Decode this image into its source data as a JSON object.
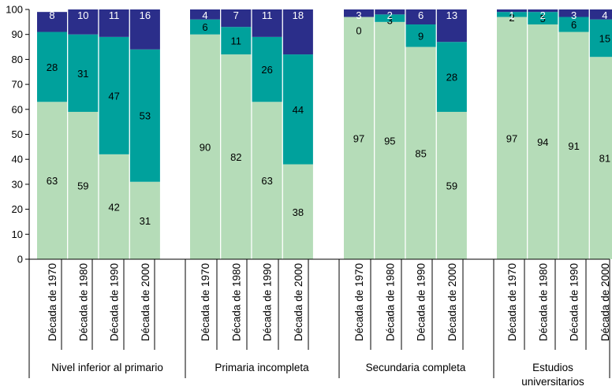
{
  "chart_data": {
    "type": "bar",
    "stacked": true,
    "ylim": [
      0,
      100
    ],
    "yticks": [
      0,
      10,
      20,
      30,
      40,
      50,
      60,
      70,
      80,
      90,
      100
    ],
    "grid": false,
    "colors": {
      "bottom": "#b5dcb8",
      "middle": "#00a19c",
      "top": "#2b2e8a"
    },
    "categories": [
      "Década de 1970",
      "Década de 1980",
      "Década de 1990",
      "Década de 2000"
    ],
    "groups": [
      {
        "label": "Nivel inferior al primario",
        "bars": [
          {
            "category": "Década de 1970",
            "values": [
              63,
              28,
              8
            ]
          },
          {
            "category": "Década de 1980",
            "values": [
              59,
              31,
              10
            ]
          },
          {
            "category": "Década de 1990",
            "values": [
              42,
              47,
              11
            ]
          },
          {
            "category": "Década de 2000",
            "values": [
              31,
              53,
              16
            ]
          }
        ]
      },
      {
        "label": "Primaria incompleta",
        "bars": [
          {
            "category": "Década de 1970",
            "values": [
              90,
              6,
              4
            ]
          },
          {
            "category": "Década de 1980",
            "values": [
              82,
              11,
              7
            ]
          },
          {
            "category": "Década de 1990",
            "values": [
              63,
              26,
              11
            ]
          },
          {
            "category": "Década de 2000",
            "values": [
              38,
              44,
              18
            ]
          }
        ]
      },
      {
        "label": "Secundaria completa",
        "bars": [
          {
            "category": "Década de 1970",
            "values": [
              97,
              0,
              3
            ]
          },
          {
            "category": "Década de 1980",
            "values": [
              95,
              3,
              2
            ]
          },
          {
            "category": "Década de 1990",
            "values": [
              85,
              9,
              6
            ]
          },
          {
            "category": "Década de 2000",
            "values": [
              59,
              28,
              13
            ]
          }
        ]
      },
      {
        "label": "Estudios universitarios",
        "bars": [
          {
            "category": "Década de 1970",
            "values": [
              97,
              2,
              1
            ]
          },
          {
            "category": "Década de 1980",
            "values": [
              94,
              5,
              2
            ]
          },
          {
            "category": "Década de 1990",
            "values": [
              91,
              6,
              3
            ]
          },
          {
            "category": "Década de 2000",
            "values": [
              81,
              15,
              4
            ]
          }
        ]
      }
    ]
  }
}
